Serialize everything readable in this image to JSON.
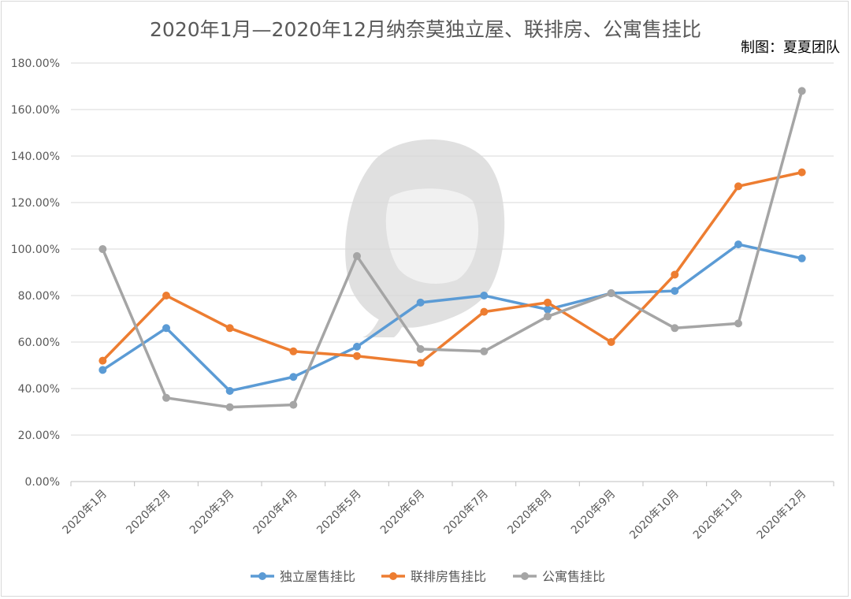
{
  "chart_data": {
    "type": "line",
    "title": "2020年1月—2020年12月纳奈莫独立屋、联排房、公寓售挂比",
    "credit": "制图：夏夏团队",
    "categories": [
      "2020年1月",
      "2020年2月",
      "2020年3月",
      "2020年4月",
      "2020年5月",
      "2020年6月",
      "2020年7月",
      "2020年8月",
      "2020年9月",
      "2020年10月",
      "2020年11月",
      "2020年12月"
    ],
    "y_ticks": [
      "0.00%",
      "20.00%",
      "40.00%",
      "60.00%",
      "80.00%",
      "100.00%",
      "120.00%",
      "140.00%",
      "160.00%",
      "180.00%"
    ],
    "ylim": [
      0,
      180
    ],
    "grid": true,
    "legend_position": "bottom",
    "series": [
      {
        "name": "独立屋售挂比",
        "color": "#5b9bd5",
        "values": [
          48,
          66,
          39,
          45,
          58,
          77,
          80,
          74,
          81,
          82,
          102,
          96
        ]
      },
      {
        "name": "联排房售挂比",
        "color": "#ed7d31",
        "values": [
          52,
          80,
          66,
          56,
          54,
          51,
          73,
          77,
          60,
          89,
          127,
          133
        ]
      },
      {
        "name": "公寓售挂比",
        "color": "#a5a5a5",
        "values": [
          100,
          36,
          32,
          33,
          97,
          57,
          56,
          71,
          81,
          66,
          68,
          168
        ]
      }
    ]
  }
}
